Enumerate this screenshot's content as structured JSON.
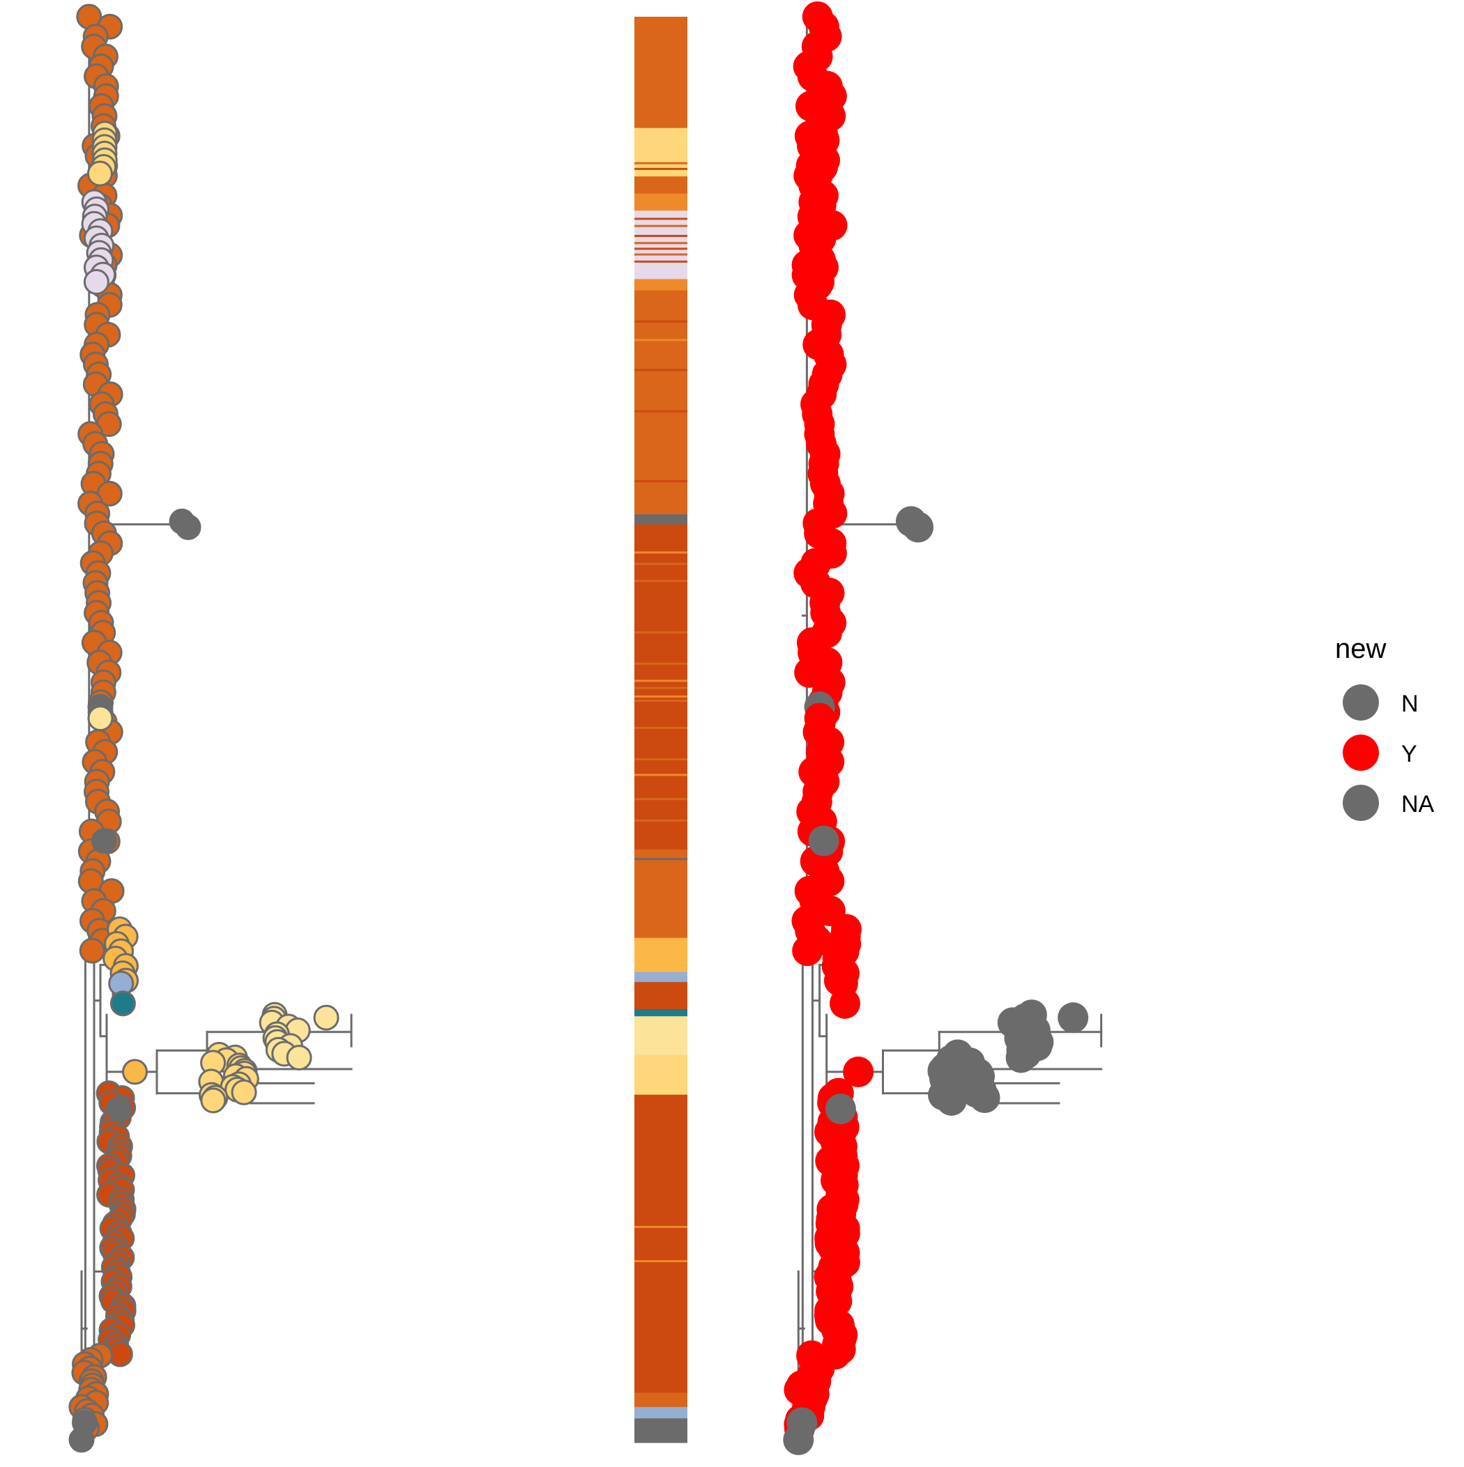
{
  "chart_data": {
    "type": "scatter",
    "title": "",
    "legend": {
      "title": "new",
      "placement": "right",
      "entries": [
        {
          "label": "N",
          "color": "#6b6b6b"
        },
        {
          "label": "Y",
          "color": "#ff0000"
        },
        {
          "label": "NA",
          "color": "#6b6b6b"
        }
      ]
    },
    "colors": {
      "branch": "#6b6b6b",
      "tip_outline": "#6b6b6b",
      "orange": "#d9661a",
      "dark_orange": "#cc4a10",
      "light_orange": "#ee8a2a",
      "gold": "#fbb846",
      "light_gold": "#fdd77a",
      "pale_yellow": "#fbe39a",
      "lavender": "#e6daea",
      "steel_blue": "#95aed4",
      "teal": "#1e7b8a",
      "grey": "#6b6b6b",
      "red": "#ff0000"
    },
    "heatmap_bands": [
      {
        "from": 0.0,
        "to": 0.078,
        "color": "orange"
      },
      {
        "from": 0.078,
        "to": 0.112,
        "color": "light_gold"
      },
      {
        "from": 0.112,
        "to": 0.124,
        "color": "orange"
      },
      {
        "from": 0.124,
        "to": 0.136,
        "color": "light_orange"
      },
      {
        "from": 0.136,
        "to": 0.15,
        "color": "lavender"
      },
      {
        "from": 0.15,
        "to": 0.176,
        "color": "lavender"
      },
      {
        "from": 0.176,
        "to": 0.184,
        "color": "lavender"
      },
      {
        "from": 0.184,
        "to": 0.192,
        "color": "light_orange"
      },
      {
        "from": 0.192,
        "to": 0.349,
        "color": "orange"
      },
      {
        "from": 0.349,
        "to": 0.356,
        "color": "grey"
      },
      {
        "from": 0.356,
        "to": 0.481,
        "color": "dark_orange"
      },
      {
        "from": 0.481,
        "to": 0.494,
        "color": "dark_orange"
      },
      {
        "from": 0.494,
        "to": 0.584,
        "color": "dark_orange"
      },
      {
        "from": 0.584,
        "to": 0.646,
        "color": "orange"
      },
      {
        "from": 0.646,
        "to": 0.67,
        "color": "gold"
      },
      {
        "from": 0.67,
        "to": 0.677,
        "color": "steel_blue"
      },
      {
        "from": 0.677,
        "to": 0.696,
        "color": "dark_orange"
      },
      {
        "from": 0.696,
        "to": 0.701,
        "color": "teal"
      },
      {
        "from": 0.701,
        "to": 0.728,
        "color": "pale_yellow"
      },
      {
        "from": 0.728,
        "to": 0.756,
        "color": "light_gold"
      },
      {
        "from": 0.756,
        "to": 0.965,
        "color": "dark_orange"
      },
      {
        "from": 0.965,
        "to": 0.975,
        "color": "orange"
      },
      {
        "from": 0.975,
        "to": 0.983,
        "color": "steel_blue"
      },
      {
        "from": 0.983,
        "to": 1.0,
        "color": "grey"
      }
    ],
    "heatmap_stripes": [
      {
        "pos": 0.102,
        "color": "orange"
      },
      {
        "pos": 0.106,
        "color": "dark_orange"
      },
      {
        "pos": 0.141,
        "color": "dark_orange"
      },
      {
        "pos": 0.146,
        "color": "orange"
      },
      {
        "pos": 0.153,
        "color": "dark_orange"
      },
      {
        "pos": 0.158,
        "color": "orange"
      },
      {
        "pos": 0.162,
        "color": "dark_orange"
      },
      {
        "pos": 0.166,
        "color": "orange"
      },
      {
        "pos": 0.171,
        "color": "dark_orange"
      },
      {
        "pos": 0.213,
        "color": "dark_orange"
      },
      {
        "pos": 0.226,
        "color": "light_orange"
      },
      {
        "pos": 0.247,
        "color": "dark_orange"
      },
      {
        "pos": 0.276,
        "color": "dark_orange"
      },
      {
        "pos": 0.325,
        "color": "dark_orange"
      },
      {
        "pos": 0.375,
        "color": "light_orange"
      },
      {
        "pos": 0.383,
        "color": "orange"
      },
      {
        "pos": 0.395,
        "color": "orange"
      },
      {
        "pos": 0.431,
        "color": "orange"
      },
      {
        "pos": 0.453,
        "color": "orange"
      },
      {
        "pos": 0.465,
        "color": "light_orange"
      },
      {
        "pos": 0.47,
        "color": "orange"
      },
      {
        "pos": 0.476,
        "color": "light_orange"
      },
      {
        "pos": 0.479,
        "color": "orange"
      },
      {
        "pos": 0.498,
        "color": "orange"
      },
      {
        "pos": 0.52,
        "color": "orange"
      },
      {
        "pos": 0.531,
        "color": "light_orange"
      },
      {
        "pos": 0.548,
        "color": "orange"
      },
      {
        "pos": 0.563,
        "color": "orange"
      },
      {
        "pos": 0.59,
        "color": "grey"
      },
      {
        "pos": 0.782,
        "color": "dark_orange"
      },
      {
        "pos": 0.848,
        "color": "light_orange"
      },
      {
        "pos": 0.872,
        "color": "light_orange"
      },
      {
        "pos": 0.947,
        "color": "dark_orange"
      }
    ],
    "clusters": [
      {
        "id": "main",
        "color": "orange",
        "y0": 0.0,
        "y1": 0.655,
        "xc": 0.06,
        "jitter": 0.018,
        "count": 95
      },
      {
        "id": "gold_a",
        "color": "light_gold",
        "y0": 0.082,
        "y1": 0.11,
        "xc": 0.062,
        "jitter": 0.006,
        "count": 7
      },
      {
        "id": "lav",
        "color": "lavender",
        "y0": 0.13,
        "y1": 0.186,
        "xc": 0.058,
        "jitter": 0.008,
        "count": 12
      },
      {
        "id": "upper_sub",
        "color": "gold",
        "y0": 0.64,
        "y1": 0.676,
        "xc": 0.093,
        "jitter": 0.009,
        "count": 8
      },
      {
        "id": "lower",
        "color": "dark_orange",
        "y0": 0.755,
        "y1": 0.938,
        "xc": 0.085,
        "jitter": 0.012,
        "count": 55
      },
      {
        "id": "bottom",
        "color": "orange",
        "y0": 0.939,
        "y1": 0.99,
        "xc": 0.045,
        "jitter": 0.016,
        "count": 18
      },
      {
        "id": "sw1",
        "color": "light_gold",
        "y0": 0.728,
        "y1": 0.76,
        "xc": 0.265,
        "jitter": 0.03,
        "count": 18
      },
      {
        "id": "sw2",
        "color": "pale_yellow",
        "y0": 0.7,
        "y1": 0.73,
        "xc": 0.355,
        "jitter": 0.022,
        "count": 12
      }
    ]
  }
}
